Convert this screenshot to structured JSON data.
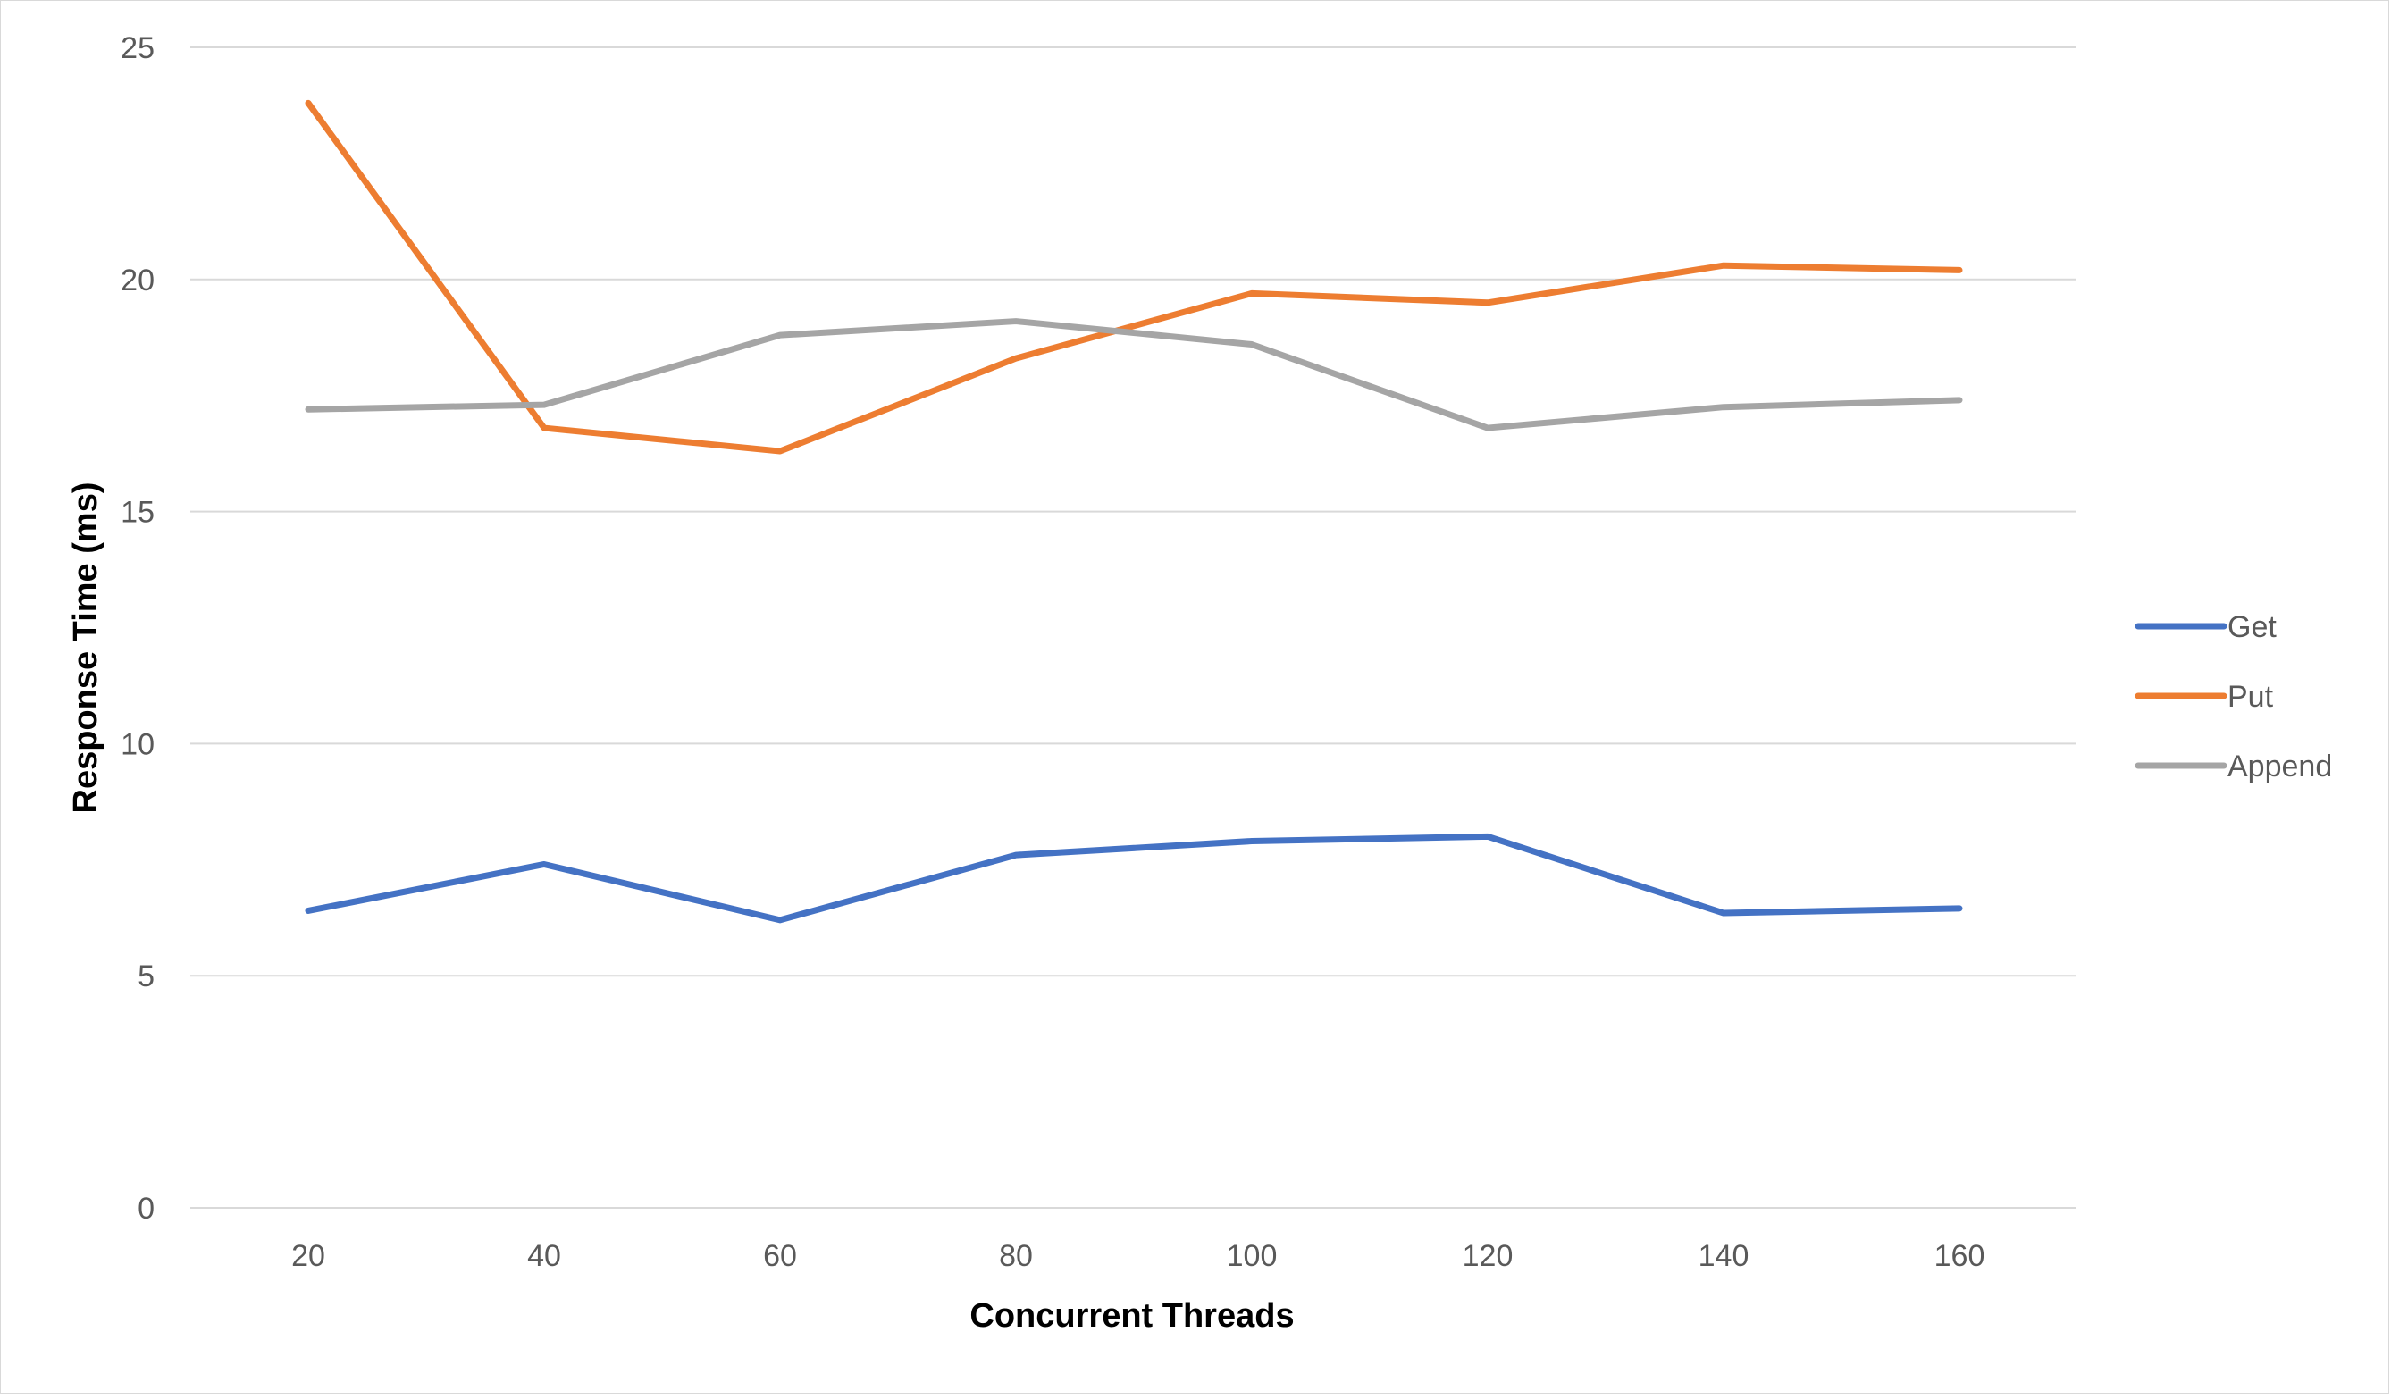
{
  "chart_data": {
    "type": "line",
    "title": "",
    "xlabel": "Concurrent Threads",
    "ylabel": "Response Time (ms)",
    "categories": [
      "20",
      "40",
      "60",
      "80",
      "100",
      "120",
      "140",
      "160"
    ],
    "ylim": [
      0,
      25
    ],
    "yticks": [
      "0",
      "5",
      "10",
      "15",
      "20",
      "25"
    ],
    "grid": true,
    "legend_position": "right",
    "series": [
      {
        "name": "Get",
        "color": "#4472C4",
        "values": [
          6.4,
          7.4,
          6.2,
          7.6,
          7.9,
          8.0,
          6.35,
          6.45
        ]
      },
      {
        "name": "Put",
        "color": "#ED7D31",
        "values": [
          23.8,
          16.8,
          16.3,
          18.3,
          19.7,
          19.5,
          20.3,
          20.2
        ]
      },
      {
        "name": "Append",
        "color": "#A5A5A5",
        "values": [
          17.2,
          17.3,
          18.8,
          19.1,
          18.6,
          16.8,
          17.25,
          17.4
        ]
      }
    ]
  }
}
